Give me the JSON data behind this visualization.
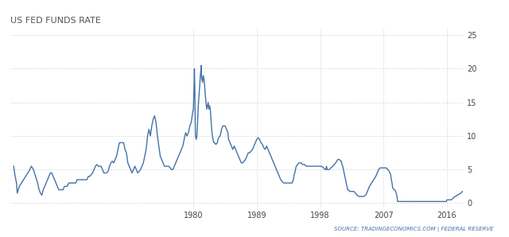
{
  "title": "US FED FUNDS RATE",
  "title_fontsize": 8,
  "title_color": "#555555",
  "line_color": "#4472a8",
  "line_width": 1.0,
  "background_color": "#ffffff",
  "grid_color": "#cccccc",
  "yticks": [
    0,
    5,
    10,
    15,
    20,
    25
  ],
  "xtick_labels": [
    "1980",
    "1989",
    "1998",
    "2007",
    "2016"
  ],
  "xtick_positions": [
    1980,
    1989,
    1998,
    2007,
    2016
  ],
  "source_text": "SOURCE: TRADINGECONOMICS.COM | FEDERAL RESERVE",
  "source_fontsize": 5.0,
  "source_color": "#4472a8",
  "xlim_start": 1954.0,
  "xlim_end": 2018.3,
  "ylim_bottom": -0.8,
  "ylim_top": 26.0,
  "data": [
    [
      1954.5,
      5.5
    ],
    [
      1954.7,
      4.0
    ],
    [
      1954.9,
      3.0
    ],
    [
      1955.0,
      1.5
    ],
    [
      1955.3,
      2.5
    ],
    [
      1955.6,
      3.0
    ],
    [
      1955.9,
      3.5
    ],
    [
      1956.2,
      4.0
    ],
    [
      1956.5,
      4.5
    ],
    [
      1956.8,
      5.0
    ],
    [
      1957.0,
      5.5
    ],
    [
      1957.3,
      5.0
    ],
    [
      1957.6,
      4.0
    ],
    [
      1957.9,
      3.0
    ],
    [
      1958.1,
      2.0
    ],
    [
      1958.3,
      1.5
    ],
    [
      1958.5,
      1.2
    ],
    [
      1958.7,
      2.0
    ],
    [
      1958.9,
      2.5
    ],
    [
      1959.1,
      3.0
    ],
    [
      1959.3,
      3.5
    ],
    [
      1959.5,
      4.0
    ],
    [
      1959.7,
      4.5
    ],
    [
      1959.9,
      4.5
    ],
    [
      1960.1,
      4.0
    ],
    [
      1960.3,
      3.5
    ],
    [
      1960.5,
      3.0
    ],
    [
      1960.7,
      2.5
    ],
    [
      1960.9,
      2.0
    ],
    [
      1961.1,
      2.0
    ],
    [
      1961.3,
      2.0
    ],
    [
      1961.5,
      2.0
    ],
    [
      1961.7,
      2.5
    ],
    [
      1961.9,
      2.5
    ],
    [
      1962.1,
      2.5
    ],
    [
      1962.3,
      3.0
    ],
    [
      1962.5,
      3.0
    ],
    [
      1962.7,
      3.0
    ],
    [
      1962.9,
      3.0
    ],
    [
      1963.1,
      3.0
    ],
    [
      1963.3,
      3.0
    ],
    [
      1963.5,
      3.5
    ],
    [
      1963.7,
      3.5
    ],
    [
      1963.9,
      3.5
    ],
    [
      1964.1,
      3.5
    ],
    [
      1964.3,
      3.5
    ],
    [
      1964.5,
      3.5
    ],
    [
      1964.7,
      3.5
    ],
    [
      1964.9,
      3.5
    ],
    [
      1965.1,
      4.0
    ],
    [
      1965.3,
      4.0
    ],
    [
      1965.5,
      4.25
    ],
    [
      1965.7,
      4.5
    ],
    [
      1965.9,
      5.0
    ],
    [
      1966.1,
      5.5
    ],
    [
      1966.3,
      5.75
    ],
    [
      1966.5,
      5.5
    ],
    [
      1966.7,
      5.5
    ],
    [
      1966.9,
      5.5
    ],
    [
      1967.1,
      5.0
    ],
    [
      1967.3,
      4.5
    ],
    [
      1967.5,
      4.5
    ],
    [
      1967.7,
      4.5
    ],
    [
      1967.9,
      4.75
    ],
    [
      1968.1,
      5.5
    ],
    [
      1968.3,
      6.0
    ],
    [
      1968.5,
      6.25
    ],
    [
      1968.7,
      6.0
    ],
    [
      1968.9,
      6.5
    ],
    [
      1969.1,
      7.0
    ],
    [
      1969.3,
      8.0
    ],
    [
      1969.5,
      9.0
    ],
    [
      1969.7,
      9.0
    ],
    [
      1969.9,
      9.0
    ],
    [
      1970.1,
      9.0
    ],
    [
      1970.3,
      8.0
    ],
    [
      1970.5,
      7.5
    ],
    [
      1970.7,
      6.0
    ],
    [
      1970.9,
      5.5
    ],
    [
      1971.1,
      5.0
    ],
    [
      1971.3,
      4.5
    ],
    [
      1971.5,
      5.0
    ],
    [
      1971.7,
      5.5
    ],
    [
      1971.9,
      5.0
    ],
    [
      1972.1,
      4.5
    ],
    [
      1972.3,
      4.75
    ],
    [
      1972.5,
      5.0
    ],
    [
      1972.7,
      5.5
    ],
    [
      1972.9,
      6.0
    ],
    [
      1973.1,
      7.0
    ],
    [
      1973.3,
      8.0
    ],
    [
      1973.5,
      10.0
    ],
    [
      1973.7,
      11.0
    ],
    [
      1973.9,
      10.0
    ],
    [
      1974.1,
      11.5
    ],
    [
      1974.3,
      12.5
    ],
    [
      1974.5,
      13.0
    ],
    [
      1974.7,
      12.0
    ],
    [
      1974.9,
      10.0
    ],
    [
      1975.1,
      8.5
    ],
    [
      1975.3,
      7.0
    ],
    [
      1975.5,
      6.5
    ],
    [
      1975.7,
      6.0
    ],
    [
      1975.9,
      5.5
    ],
    [
      1976.1,
      5.5
    ],
    [
      1976.3,
      5.5
    ],
    [
      1976.5,
      5.5
    ],
    [
      1976.7,
      5.25
    ],
    [
      1976.9,
      5.0
    ],
    [
      1977.1,
      5.0
    ],
    [
      1977.3,
      5.5
    ],
    [
      1977.5,
      6.0
    ],
    [
      1977.7,
      6.5
    ],
    [
      1977.9,
      7.0
    ],
    [
      1978.1,
      7.5
    ],
    [
      1978.3,
      8.0
    ],
    [
      1978.5,
      8.5
    ],
    [
      1978.7,
      9.5
    ],
    [
      1978.9,
      10.5
    ],
    [
      1979.1,
      10.0
    ],
    [
      1979.3,
      10.5
    ],
    [
      1979.5,
      11.5
    ],
    [
      1979.7,
      12.0
    ],
    [
      1979.9,
      13.5
    ],
    [
      1980.0,
      14.0
    ],
    [
      1980.1,
      17.5
    ],
    [
      1980.15,
      20.0
    ],
    [
      1980.2,
      17.5
    ],
    [
      1980.25,
      13.0
    ],
    [
      1980.3,
      10.0
    ],
    [
      1980.4,
      9.5
    ],
    [
      1980.5,
      10.0
    ],
    [
      1980.6,
      12.0
    ],
    [
      1980.7,
      14.5
    ],
    [
      1980.8,
      16.0
    ],
    [
      1980.9,
      17.5
    ],
    [
      1981.0,
      19.0
    ],
    [
      1981.05,
      19.5
    ],
    [
      1981.1,
      20.5
    ],
    [
      1981.15,
      19.0
    ],
    [
      1981.2,
      18.5
    ],
    [
      1981.3,
      18.0
    ],
    [
      1981.4,
      19.0
    ],
    [
      1981.5,
      18.5
    ],
    [
      1981.6,
      17.5
    ],
    [
      1981.7,
      16.0
    ],
    [
      1981.8,
      15.0
    ],
    [
      1981.9,
      14.0
    ],
    [
      1982.0,
      14.5
    ],
    [
      1982.1,
      15.0
    ],
    [
      1982.2,
      14.0
    ],
    [
      1982.3,
      14.5
    ],
    [
      1982.4,
      14.0
    ],
    [
      1982.5,
      12.5
    ],
    [
      1982.6,
      11.0
    ],
    [
      1982.7,
      10.0
    ],
    [
      1982.8,
      9.5
    ],
    [
      1982.9,
      9.0
    ],
    [
      1983.0,
      9.0
    ],
    [
      1983.2,
      8.75
    ],
    [
      1983.4,
      9.0
    ],
    [
      1983.5,
      9.5
    ],
    [
      1983.6,
      9.75
    ],
    [
      1983.8,
      10.0
    ],
    [
      1984.0,
      11.0
    ],
    [
      1984.2,
      11.5
    ],
    [
      1984.3,
      11.5
    ],
    [
      1984.5,
      11.5
    ],
    [
      1984.7,
      11.0
    ],
    [
      1984.9,
      10.5
    ],
    [
      1985.0,
      9.5
    ],
    [
      1985.2,
      9.0
    ],
    [
      1985.4,
      8.5
    ],
    [
      1985.6,
      8.0
    ],
    [
      1985.8,
      8.5
    ],
    [
      1986.0,
      8.0
    ],
    [
      1986.2,
      7.5
    ],
    [
      1986.4,
      7.0
    ],
    [
      1986.6,
      6.5
    ],
    [
      1986.8,
      6.0
    ],
    [
      1987.0,
      6.0
    ],
    [
      1987.2,
      6.25
    ],
    [
      1987.4,
      6.5
    ],
    [
      1987.6,
      7.0
    ],
    [
      1987.8,
      7.5
    ],
    [
      1988.0,
      7.5
    ],
    [
      1988.2,
      7.75
    ],
    [
      1988.4,
      8.0
    ],
    [
      1988.6,
      8.5
    ],
    [
      1988.8,
      9.0
    ],
    [
      1989.0,
      9.5
    ],
    [
      1989.2,
      9.75
    ],
    [
      1989.4,
      9.5
    ],
    [
      1989.6,
      9.0
    ],
    [
      1989.8,
      8.75
    ],
    [
      1990.0,
      8.25
    ],
    [
      1990.2,
      8.0
    ],
    [
      1990.4,
      8.5
    ],
    [
      1990.6,
      8.0
    ],
    [
      1990.8,
      7.5
    ],
    [
      1991.0,
      7.0
    ],
    [
      1991.2,
      6.5
    ],
    [
      1991.4,
      6.0
    ],
    [
      1991.6,
      5.5
    ],
    [
      1991.8,
      5.0
    ],
    [
      1992.0,
      4.5
    ],
    [
      1992.2,
      4.0
    ],
    [
      1992.4,
      3.5
    ],
    [
      1992.6,
      3.25
    ],
    [
      1992.8,
      3.0
    ],
    [
      1993.0,
      3.0
    ],
    [
      1993.2,
      3.0
    ],
    [
      1993.4,
      3.0
    ],
    [
      1993.6,
      3.0
    ],
    [
      1993.8,
      3.0
    ],
    [
      1994.0,
      3.0
    ],
    [
      1994.1,
      3.25
    ],
    [
      1994.2,
      3.5
    ],
    [
      1994.3,
      4.25
    ],
    [
      1994.4,
      4.5
    ],
    [
      1994.5,
      5.0
    ],
    [
      1994.6,
      5.5
    ],
    [
      1994.8,
      5.75
    ],
    [
      1995.0,
      6.0
    ],
    [
      1995.3,
      6.0
    ],
    [
      1995.5,
      5.75
    ],
    [
      1995.8,
      5.75
    ],
    [
      1996.0,
      5.5
    ],
    [
      1996.3,
      5.5
    ],
    [
      1996.5,
      5.5
    ],
    [
      1996.8,
      5.5
    ],
    [
      1997.0,
      5.5
    ],
    [
      1997.3,
      5.5
    ],
    [
      1997.5,
      5.5
    ],
    [
      1997.8,
      5.5
    ],
    [
      1998.0,
      5.5
    ],
    [
      1998.2,
      5.5
    ],
    [
      1998.5,
      5.25
    ],
    [
      1998.7,
      5.0
    ],
    [
      1998.8,
      5.0
    ],
    [
      1998.9,
      5.5
    ],
    [
      1999.0,
      5.0
    ],
    [
      1999.3,
      5.0
    ],
    [
      1999.5,
      5.25
    ],
    [
      1999.8,
      5.5
    ],
    [
      2000.0,
      5.75
    ],
    [
      2000.2,
      6.0
    ],
    [
      2000.5,
      6.5
    ],
    [
      2000.7,
      6.5
    ],
    [
      2001.0,
      6.25
    ],
    [
      2001.1,
      5.75
    ],
    [
      2001.2,
      5.5
    ],
    [
      2001.3,
      5.0
    ],
    [
      2001.4,
      4.5
    ],
    [
      2001.5,
      4.0
    ],
    [
      2001.6,
      3.5
    ],
    [
      2001.7,
      3.0
    ],
    [
      2001.8,
      2.5
    ],
    [
      2001.9,
      2.0
    ],
    [
      2002.0,
      2.0
    ],
    [
      2002.2,
      1.75
    ],
    [
      2002.5,
      1.75
    ],
    [
      2002.8,
      1.75
    ],
    [
      2003.0,
      1.5
    ],
    [
      2003.2,
      1.25
    ],
    [
      2003.5,
      1.0
    ],
    [
      2003.8,
      1.0
    ],
    [
      2004.0,
      1.0
    ],
    [
      2004.2,
      1.0
    ],
    [
      2004.5,
      1.25
    ],
    [
      2004.7,
      1.75
    ],
    [
      2005.0,
      2.5
    ],
    [
      2005.3,
      3.0
    ],
    [
      2005.6,
      3.5
    ],
    [
      2005.9,
      4.0
    ],
    [
      2006.1,
      4.5
    ],
    [
      2006.3,
      5.0
    ],
    [
      2006.5,
      5.25
    ],
    [
      2006.8,
      5.25
    ],
    [
      2007.0,
      5.25
    ],
    [
      2007.2,
      5.25
    ],
    [
      2007.4,
      5.25
    ],
    [
      2007.6,
      5.0
    ],
    [
      2007.8,
      4.75
    ],
    [
      2008.0,
      4.25
    ],
    [
      2008.1,
      3.5
    ],
    [
      2008.2,
      3.0
    ],
    [
      2008.3,
      2.25
    ],
    [
      2008.5,
      2.0
    ],
    [
      2008.6,
      2.0
    ],
    [
      2008.7,
      1.75
    ],
    [
      2008.8,
      1.5
    ],
    [
      2008.9,
      1.0
    ],
    [
      2009.0,
      0.25
    ],
    [
      2009.3,
      0.25
    ],
    [
      2009.6,
      0.25
    ],
    [
      2009.9,
      0.25
    ],
    [
      2010.3,
      0.25
    ],
    [
      2010.6,
      0.25
    ],
    [
      2010.9,
      0.25
    ],
    [
      2011.3,
      0.25
    ],
    [
      2011.6,
      0.25
    ],
    [
      2011.9,
      0.25
    ],
    [
      2012.3,
      0.25
    ],
    [
      2012.6,
      0.25
    ],
    [
      2012.9,
      0.25
    ],
    [
      2013.3,
      0.25
    ],
    [
      2013.6,
      0.25
    ],
    [
      2013.9,
      0.25
    ],
    [
      2014.3,
      0.25
    ],
    [
      2014.6,
      0.25
    ],
    [
      2014.9,
      0.25
    ],
    [
      2015.3,
      0.25
    ],
    [
      2015.6,
      0.25
    ],
    [
      2015.9,
      0.25
    ],
    [
      2016.0,
      0.5
    ],
    [
      2016.3,
      0.5
    ],
    [
      2016.6,
      0.5
    ],
    [
      2016.8,
      0.66
    ],
    [
      2017.0,
      0.91
    ],
    [
      2017.2,
      1.0
    ],
    [
      2017.4,
      1.16
    ],
    [
      2017.6,
      1.25
    ],
    [
      2017.8,
      1.41
    ],
    [
      2018.0,
      1.5
    ],
    [
      2018.1,
      1.66
    ],
    [
      2018.2,
      1.75
    ]
  ]
}
